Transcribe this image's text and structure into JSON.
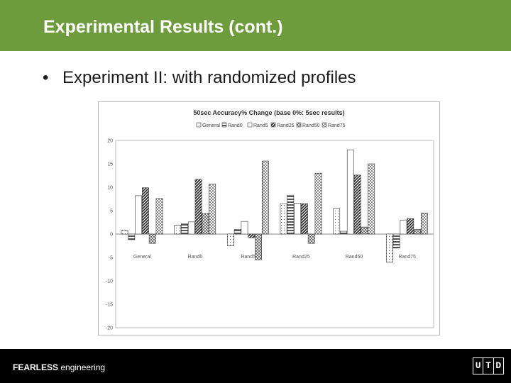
{
  "slide": {
    "title": "Experimental Results (cont.)",
    "bullet": "Experiment II: with randomized profiles"
  },
  "footer": {
    "bold": "FEARLESS",
    "text": " engineering",
    "logo_letters": [
      "U",
      "T",
      "D"
    ]
  },
  "colors": {
    "header": "#6e9b3c",
    "footer": "#000000"
  },
  "chart_data": {
    "type": "bar",
    "title": "50sec Accuracy% Change (base 0%: 5sec results)",
    "categories": [
      "General",
      "Rand0",
      "Rand5",
      "Rand25",
      "Rand50",
      "Rand75"
    ],
    "ylim": [
      -20,
      20
    ],
    "yticks": [
      20,
      15,
      10,
      5,
      0,
      -5,
      -10,
      -15,
      -20
    ],
    "legend_position": "top",
    "grid": false,
    "series": [
      {
        "name": "General",
        "values": [
          0.8,
          1.9,
          -2.5,
          6.5,
          5.5,
          -6.0
        ]
      },
      {
        "name": "Rand0",
        "values": [
          -1.2,
          2.2,
          1.0,
          8.3,
          0.6,
          -3.0
        ]
      },
      {
        "name": "Rand5",
        "values": [
          8.2,
          2.6,
          2.7,
          6.6,
          18.0,
          3.0
        ]
      },
      {
        "name": "Rand25",
        "values": [
          9.9,
          11.7,
          -0.8,
          6.5,
          12.6,
          3.3
        ]
      },
      {
        "name": "Rand50",
        "values": [
          -2.0,
          4.4,
          -5.5,
          -2.0,
          1.5,
          1.0
        ]
      },
      {
        "name": "Rand75",
        "values": [
          7.6,
          10.7,
          15.6,
          13.0,
          15.0,
          4.5
        ]
      }
    ]
  }
}
